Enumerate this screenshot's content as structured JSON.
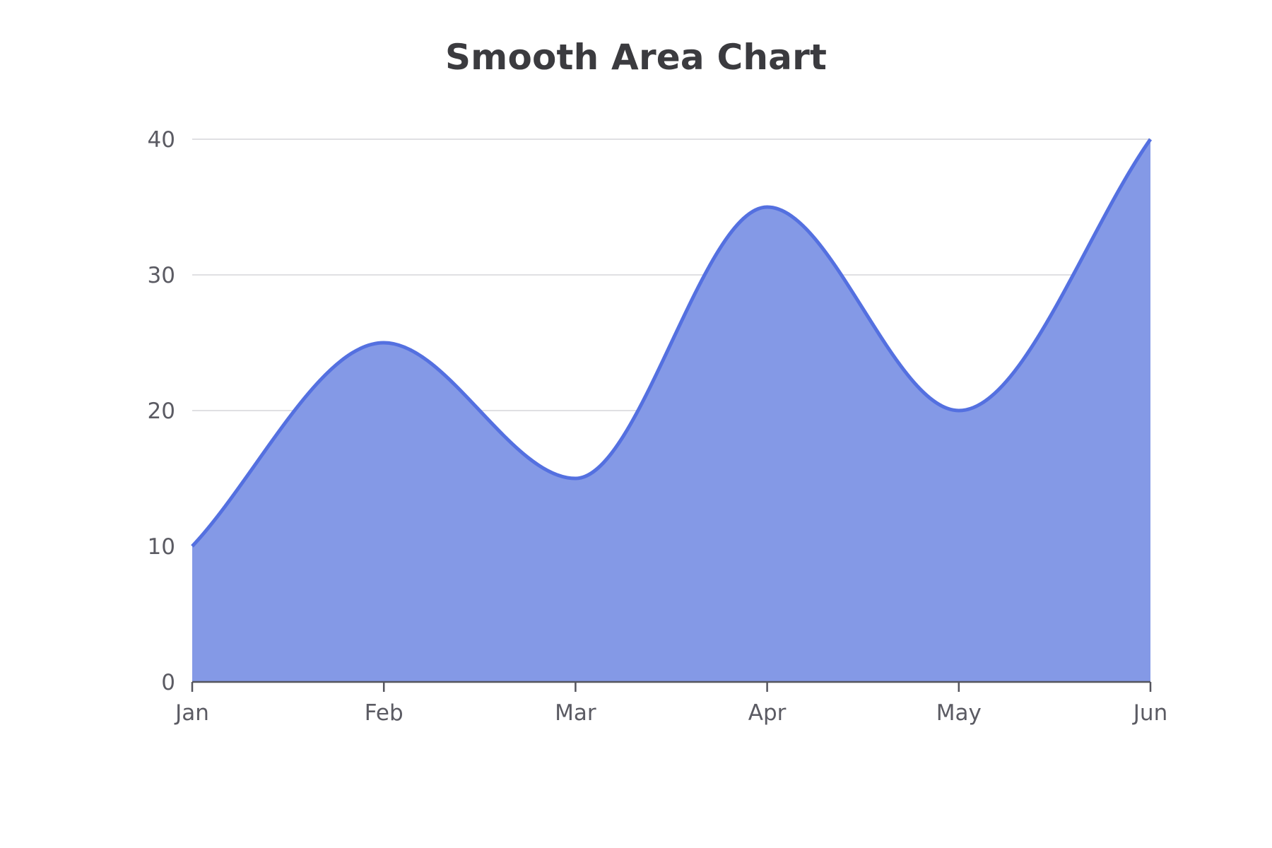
{
  "chart_data": {
    "type": "area",
    "title": "Smooth Area Chart",
    "smooth": true,
    "categories": [
      "Jan",
      "Feb",
      "Mar",
      "Apr",
      "May",
      "Jun"
    ],
    "series": [
      {
        "values": [
          10,
          25,
          15,
          35,
          20,
          40
        ]
      }
    ],
    "ylim": [
      0,
      40
    ],
    "yticks": [
      0,
      10,
      20,
      30,
      40
    ],
    "grid": true,
    "colors": {
      "line": "#5470e0",
      "fill": "#8499e6",
      "grid": "#e0e0e3",
      "axis": "#55555d"
    }
  }
}
